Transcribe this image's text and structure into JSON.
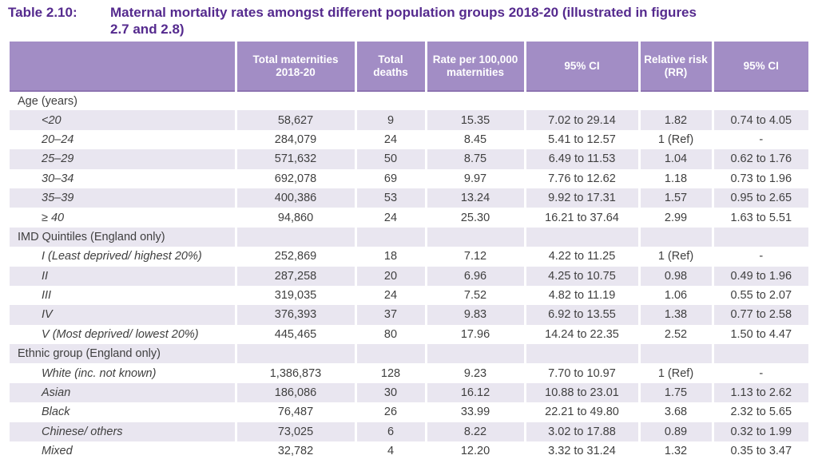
{
  "title": {
    "label": "Table 2.10:",
    "line1": "Maternal mortality rates amongst different population groups 2018-20 (illustrated in figures",
    "line2": "2.7 and 2.8)"
  },
  "colors": {
    "header_bg": "#a28dc5",
    "header_bottom_edge": "#8d74b1",
    "stripe_bg": "#e9e6f0",
    "title_text": "#552a8e",
    "body_text": "#3f3f3f",
    "header_text": "#ffffff"
  },
  "table": {
    "columns": [
      "",
      "Total maternities 2018-20",
      "Total deaths",
      "Rate per 100,000 maternities",
      "95% CI",
      "Relative risk (RR)",
      "95% CI"
    ],
    "sections": [
      {
        "header": "Age (years)",
        "rows": [
          {
            "label": "<20",
            "cells": [
              "58,627",
              "9",
              "15.35",
              "7.02 to 29.14",
              "1.82",
              "0.74 to 4.05"
            ]
          },
          {
            "label": "20–24",
            "cells": [
              "284,079",
              "24",
              "8.45",
              "5.41 to 12.57",
              "1 (Ref)",
              "-"
            ]
          },
          {
            "label": "25–29",
            "cells": [
              "571,632",
              "50",
              "8.75",
              "6.49 to 11.53",
              "1.04",
              "0.62 to 1.76"
            ]
          },
          {
            "label": "30–34",
            "cells": [
              "692,078",
              "69",
              "9.97",
              "7.76 to 12.62",
              "1.18",
              "0.73 to 1.96"
            ]
          },
          {
            "label": "35–39",
            "cells": [
              "400,386",
              "53",
              "13.24",
              "9.92 to 17.31",
              "1.57",
              "0.95 to 2.65"
            ]
          },
          {
            "label": "≥ 40",
            "cells": [
              "94,860",
              "24",
              "25.30",
              "16.21 to 37.64",
              "2.99",
              "1.63 to 5.51"
            ]
          }
        ]
      },
      {
        "header": "IMD Quintiles (England only)",
        "rows": [
          {
            "label": "I (Least deprived/ highest 20%)",
            "cells": [
              "252,869",
              "18",
              "7.12",
              "4.22 to 11.25",
              "1 (Ref)",
              "-"
            ]
          },
          {
            "label": "II",
            "cells": [
              "287,258",
              "20",
              "6.96",
              "4.25 to 10.75",
              "0.98",
              "0.49 to 1.96"
            ]
          },
          {
            "label": "III",
            "cells": [
              "319,035",
              "24",
              "7.52",
              "4.82 to 11.19",
              "1.06",
              "0.55 to 2.07"
            ]
          },
          {
            "label": "IV",
            "cells": [
              "376,393",
              "37",
              "9.83",
              "6.92 to 13.55",
              "1.38",
              "0.77 to 2.58"
            ]
          },
          {
            "label": "V (Most deprived/ lowest 20%)",
            "cells": [
              "445,465",
              "80",
              "17.96",
              "14.24 to 22.35",
              "2.52",
              "1.50 to 4.47"
            ]
          }
        ]
      },
      {
        "header": "Ethnic group (England only)",
        "rows": [
          {
            "label": "White (inc. not known)",
            "cells": [
              "1,386,873",
              "128",
              "9.23",
              "7.70 to 10.97",
              "1 (Ref)",
              "-"
            ]
          },
          {
            "label": "Asian",
            "cells": [
              "186,086",
              "30",
              "16.12",
              "10.88 to 23.01",
              "1.75",
              "1.13 to 2.62"
            ]
          },
          {
            "label": "Black",
            "cells": [
              "76,487",
              "26",
              "33.99",
              "22.21 to 49.80",
              "3.68",
              "2.32 to 5.65"
            ]
          },
          {
            "label": "Chinese/ others",
            "cells": [
              "73,025",
              "6",
              "8.22",
              "3.02 to 17.88",
              "0.89",
              "0.32 to 1.99"
            ]
          },
          {
            "label": "Mixed",
            "cells": [
              "32,782",
              "4",
              "12.20",
              "3.32 to 31.24",
              "1.32",
              "0.35 to 3.47"
            ]
          }
        ]
      }
    ]
  }
}
